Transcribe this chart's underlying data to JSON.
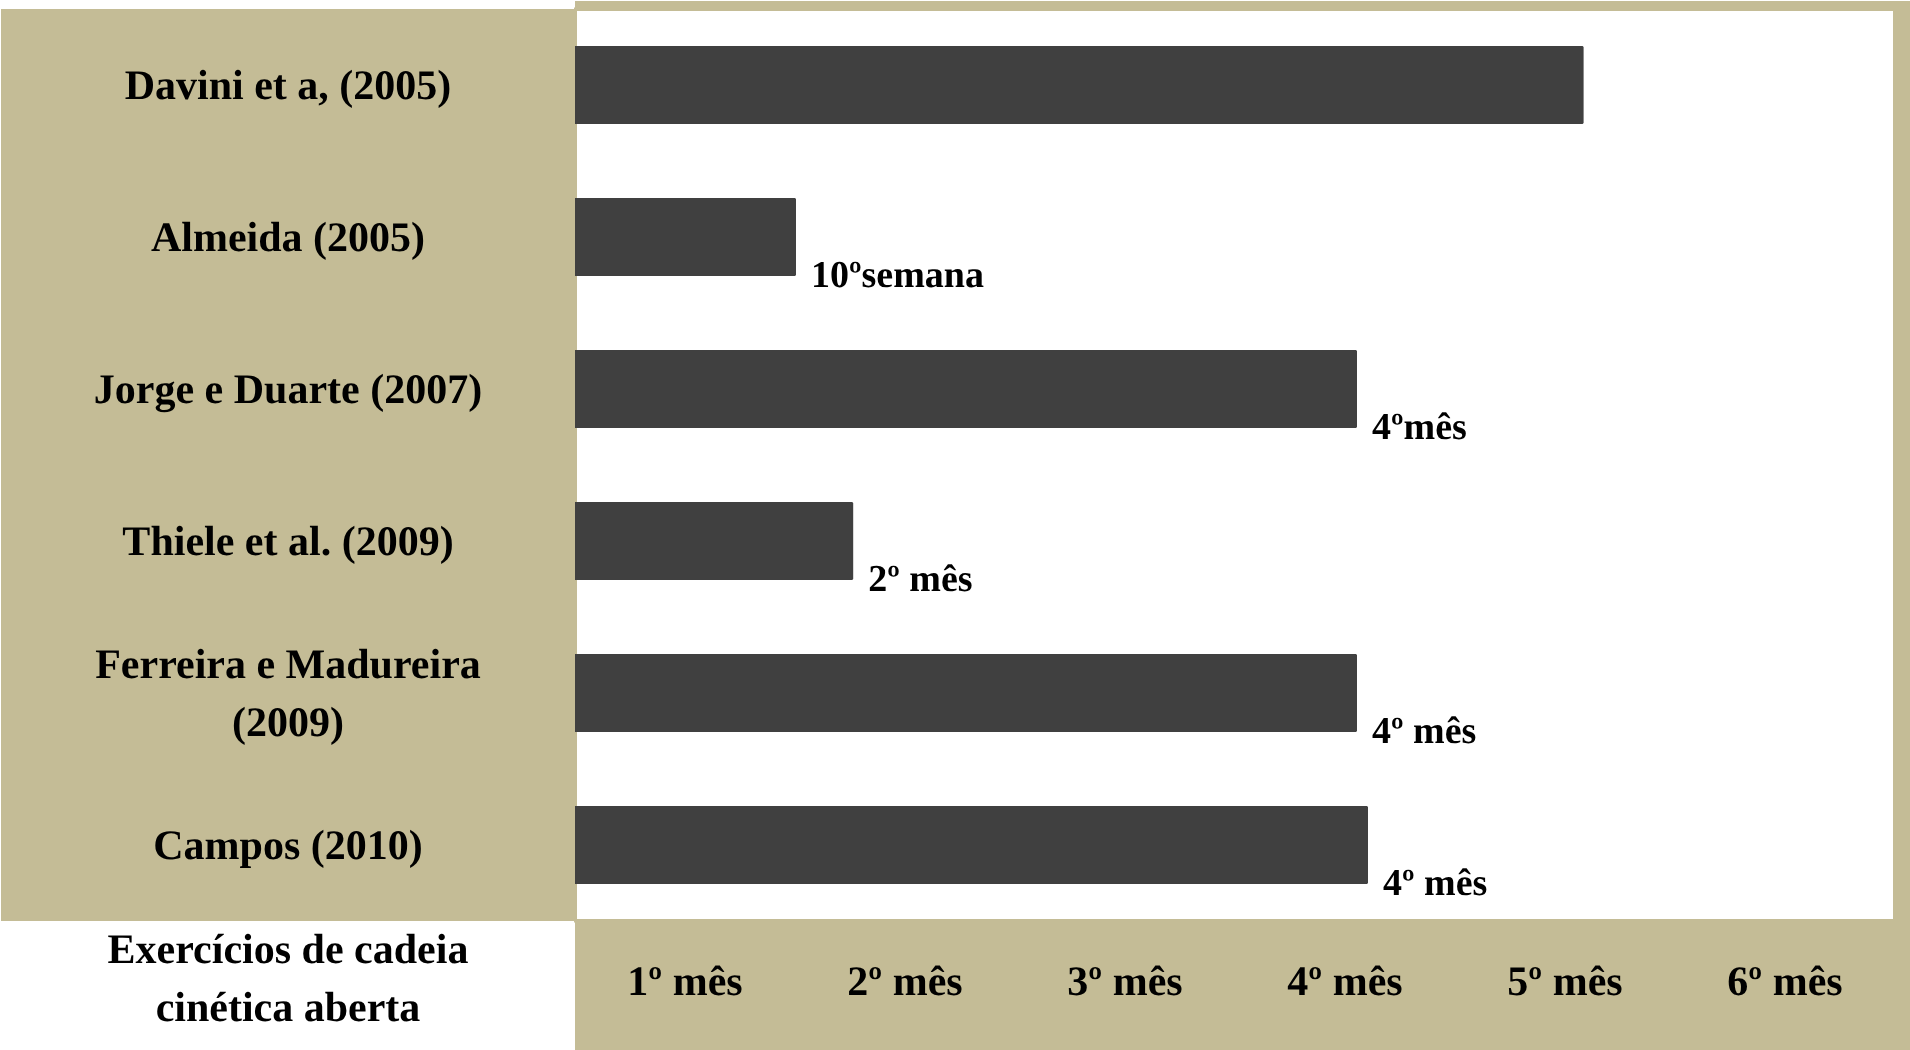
{
  "chart_data": {
    "type": "bar",
    "orientation": "horizontal",
    "xlabel": "Exercícios de cadeia cinética aberta",
    "categories": [
      "Davini et a, (2005)",
      "Almeida (2005)",
      "Jorge e Duarte (2007)",
      "Thiele et al. (2009)",
      "Ferreira e Madureira (2009)",
      "Campos (2010)"
    ],
    "values": [
      4.58,
      1.0,
      3.55,
      1.26,
      3.55,
      3.6
    ],
    "annotations": [
      {
        "text": "10ºsemana",
        "x": 1.0,
        "y": "Almeida (2005)"
      },
      {
        "text": "4ºmês",
        "x": 3.55,
        "y": "Jorge e Duarte (2007)"
      },
      {
        "text": "2º mês",
        "x": 1.26,
        "y": "Thiele et al. (2009)"
      },
      {
        "text": "4º mês",
        "x": 3.55,
        "y": "Ferreira e Madureira (2009)"
      },
      {
        "text": "4º mês",
        "x": 3.6,
        "y": "Campos (2010)"
      }
    ],
    "color": "#404040",
    "xlim": [
      0,
      6
    ],
    "xticks": [
      {
        "value": 0.5,
        "label": "1º mês"
      },
      {
        "value": 1.5,
        "label": "2º mês"
      },
      {
        "value": 2.5,
        "label": "3º mês"
      },
      {
        "value": 3.5,
        "label": "4º mês"
      },
      {
        "value": 4.5,
        "label": "5º mês"
      },
      {
        "value": 5.5,
        "label": "6º mês"
      }
    ],
    "grid": false
  }
}
